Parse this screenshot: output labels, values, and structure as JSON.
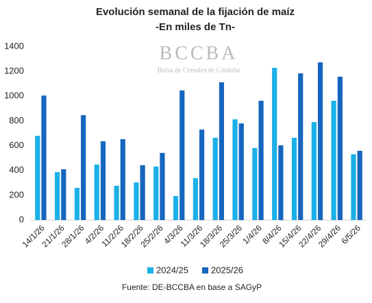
{
  "chart_data": {
    "type": "bar",
    "title": "Evolución semanal de la fijación de maíz",
    "subtitle": "-En miles de Tn-",
    "watermark": "BCCBA",
    "watermark_subtitle": "Bolsa de Cereales de Córdoba",
    "source": "Fuente: DE-BCCBA en base a SAGyP",
    "categories": [
      "14/1/26",
      "21/1/26",
      "28/1/26",
      "4/2/26",
      "11/2/26",
      "18/2/26",
      "25/2/26",
      "4/3/26",
      "11/3/26",
      "18/3/26",
      "25/3/26",
      "1/4/26",
      "8/4/26",
      "15/4/26",
      "22/4/26",
      "29/4/26",
      "6/5/26"
    ],
    "series": [
      {
        "name": "2024/25",
        "color": "#1cb0e8",
        "values": [
          680,
          387,
          260,
          448,
          277,
          304,
          432,
          194,
          338,
          664,
          813,
          581,
          1229,
          664,
          791,
          963,
          531
        ]
      },
      {
        "name": "2025/26",
        "color": "#1666bf",
        "values": [
          1005,
          410,
          847,
          636,
          653,
          443,
          542,
          1046,
          730,
          1112,
          780,
          963,
          603,
          1184,
          1273,
          1157,
          559
        ]
      }
    ],
    "ylim": [
      0,
      1400
    ],
    "yticks": [
      0,
      200,
      400,
      600,
      800,
      1000,
      1200,
      1400
    ],
    "grid": false,
    "legend": "bottom"
  }
}
